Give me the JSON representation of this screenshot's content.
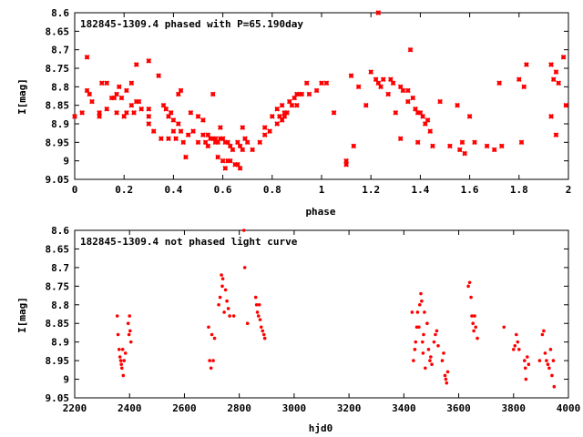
{
  "chart_data": [
    {
      "type": "scatter",
      "title": "182845-1309.4 phased with P=65.190day",
      "xlabel": "phase",
      "ylabel": "I[mag]",
      "xlim": [
        0,
        2
      ],
      "ylim": [
        8.6,
        9.05
      ],
      "y_inverted": true,
      "grid": false,
      "marker": "x-cross",
      "color": "#ff0000",
      "x_ticks": [
        "0",
        "0.2",
        "0.4",
        "0.6",
        "0.8",
        "1",
        "1.2",
        "1.4",
        "1.6",
        "1.8",
        "2"
      ],
      "y_ticks": [
        "8.6",
        "8.65",
        "8.7",
        "8.75",
        "8.8",
        "8.85",
        "8.9",
        "8.95",
        "9",
        "9.05"
      ],
      "points": [
        [
          0.0,
          8.88
        ],
        [
          0.03,
          8.87
        ],
        [
          0.05,
          8.72
        ],
        [
          0.05,
          8.81
        ],
        [
          0.06,
          8.82
        ],
        [
          0.07,
          8.84
        ],
        [
          0.1,
          8.87
        ],
        [
          0.1,
          8.88
        ],
        [
          0.11,
          8.79
        ],
        [
          0.13,
          8.79
        ],
        [
          0.13,
          8.86
        ],
        [
          0.15,
          8.83
        ],
        [
          0.16,
          8.83
        ],
        [
          0.17,
          8.82
        ],
        [
          0.17,
          8.87
        ],
        [
          0.18,
          8.8
        ],
        [
          0.19,
          8.83
        ],
        [
          0.2,
          8.88
        ],
        [
          0.21,
          8.87
        ],
        [
          0.21,
          8.81
        ],
        [
          0.23,
          8.79
        ],
        [
          0.23,
          8.85
        ],
        [
          0.24,
          8.87
        ],
        [
          0.25,
          8.74
        ],
        [
          0.25,
          8.84
        ],
        [
          0.26,
          8.84
        ],
        [
          0.27,
          8.86
        ],
        [
          0.3,
          8.88
        ],
        [
          0.3,
          8.9
        ],
        [
          0.3,
          8.86
        ],
        [
          0.3,
          8.73
        ],
        [
          0.32,
          8.92
        ],
        [
          0.34,
          8.77
        ],
        [
          0.35,
          8.94
        ],
        [
          0.36,
          8.85
        ],
        [
          0.37,
          8.86
        ],
        [
          0.38,
          8.88
        ],
        [
          0.38,
          8.94
        ],
        [
          0.39,
          8.87
        ],
        [
          0.4,
          8.89
        ],
        [
          0.4,
          8.92
        ],
        [
          0.41,
          8.94
        ],
        [
          0.42,
          8.9
        ],
        [
          0.42,
          8.82
        ],
        [
          0.43,
          8.81
        ],
        [
          0.43,
          8.92
        ],
        [
          0.44,
          8.95
        ],
        [
          0.45,
          8.99
        ],
        [
          0.46,
          8.93
        ],
        [
          0.47,
          8.87
        ],
        [
          0.48,
          8.92
        ],
        [
          0.5,
          8.88
        ],
        [
          0.5,
          8.95
        ],
        [
          0.52,
          8.89
        ],
        [
          0.52,
          8.93
        ],
        [
          0.53,
          8.95
        ],
        [
          0.54,
          8.96
        ],
        [
          0.54,
          8.93
        ],
        [
          0.55,
          8.94
        ],
        [
          0.56,
          8.82
        ],
        [
          0.56,
          8.94
        ],
        [
          0.57,
          8.95
        ],
        [
          0.57,
          8.94
        ],
        [
          0.58,
          8.95
        ],
        [
          0.58,
          8.99
        ],
        [
          0.59,
          8.94
        ],
        [
          0.59,
          8.91
        ],
        [
          0.6,
          8.94
        ],
        [
          0.6,
          9.0
        ],
        [
          0.61,
          8.95
        ],
        [
          0.61,
          9.02
        ],
        [
          0.62,
          8.95
        ],
        [
          0.62,
          9.0
        ],
        [
          0.63,
          8.96
        ],
        [
          0.63,
          9.0
        ],
        [
          0.64,
          8.97
        ],
        [
          0.65,
          9.01
        ],
        [
          0.66,
          8.95
        ],
        [
          0.66,
          9.01
        ],
        [
          0.67,
          8.96
        ],
        [
          0.67,
          9.02
        ],
        [
          0.68,
          8.97
        ],
        [
          0.68,
          8.91
        ],
        [
          0.69,
          8.94
        ],
        [
          0.7,
          8.95
        ],
        [
          0.72,
          8.97
        ],
        [
          0.75,
          8.95
        ],
        [
          0.77,
          8.93
        ],
        [
          0.77,
          8.91
        ],
        [
          0.79,
          8.92
        ],
        [
          0.8,
          8.88
        ],
        [
          0.82,
          8.9
        ],
        [
          0.82,
          8.86
        ],
        [
          0.83,
          8.88
        ],
        [
          0.84,
          8.89
        ],
        [
          0.84,
          8.85
        ],
        [
          0.85,
          8.88
        ],
        [
          0.85,
          8.87
        ],
        [
          0.86,
          8.87
        ],
        [
          0.87,
          8.84
        ],
        [
          0.88,
          8.85
        ],
        [
          0.89,
          8.83
        ],
        [
          0.9,
          8.82
        ],
        [
          0.9,
          8.85
        ],
        [
          0.91,
          8.82
        ],
        [
          0.92,
          8.82
        ],
        [
          0.94,
          8.79
        ],
        [
          0.95,
          8.82
        ],
        [
          0.98,
          8.81
        ],
        [
          1.0,
          8.79
        ],
        [
          1.02,
          8.79
        ],
        [
          1.05,
          8.87
        ],
        [
          1.1,
          9.01
        ],
        [
          1.1,
          9.0
        ],
        [
          1.12,
          8.77
        ],
        [
          1.13,
          8.96
        ],
        [
          1.15,
          8.8
        ],
        [
          1.18,
          8.85
        ],
        [
          1.2,
          8.76
        ],
        [
          1.22,
          8.78
        ],
        [
          1.23,
          8.6
        ],
        [
          1.23,
          8.79
        ],
        [
          1.24,
          8.8
        ],
        [
          1.25,
          8.78
        ],
        [
          1.27,
          8.82
        ],
        [
          1.28,
          8.78
        ],
        [
          1.29,
          8.79
        ],
        [
          1.3,
          8.87
        ],
        [
          1.32,
          8.8
        ],
        [
          1.32,
          8.94
        ],
        [
          1.33,
          8.81
        ],
        [
          1.35,
          8.81
        ],
        [
          1.35,
          8.84
        ],
        [
          1.36,
          8.7
        ],
        [
          1.37,
          8.83
        ],
        [
          1.38,
          8.86
        ],
        [
          1.39,
          8.87
        ],
        [
          1.39,
          8.95
        ],
        [
          1.4,
          8.87
        ],
        [
          1.41,
          8.88
        ],
        [
          1.42,
          8.9
        ],
        [
          1.43,
          8.89
        ],
        [
          1.44,
          8.92
        ],
        [
          1.45,
          8.96
        ],
        [
          1.48,
          8.84
        ],
        [
          1.52,
          8.96
        ],
        [
          1.55,
          8.85
        ],
        [
          1.56,
          8.97
        ],
        [
          1.57,
          8.95
        ],
        [
          1.58,
          8.98
        ],
        [
          1.6,
          8.88
        ],
        [
          1.62,
          8.95
        ],
        [
          1.67,
          8.96
        ],
        [
          1.7,
          8.97
        ],
        [
          1.72,
          8.79
        ],
        [
          1.73,
          8.96
        ],
        [
          1.8,
          8.78
        ],
        [
          1.81,
          8.95
        ],
        [
          1.82,
          8.8
        ],
        [
          1.83,
          8.74
        ],
        [
          1.93,
          8.88
        ],
        [
          1.93,
          8.74
        ],
        [
          1.94,
          8.78
        ],
        [
          1.95,
          8.76
        ],
        [
          1.96,
          8.79
        ],
        [
          1.95,
          8.93
        ],
        [
          1.98,
          8.72
        ],
        [
          1.99,
          8.85
        ]
      ]
    },
    {
      "type": "scatter",
      "title": "182845-1309.4 not phased light curve",
      "xlabel": "hjd0",
      "ylabel": "I[mag]",
      "xlim": [
        2200,
        4000
      ],
      "ylim": [
        8.6,
        9.05
      ],
      "y_inverted": true,
      "grid": false,
      "marker": "dot",
      "color": "#ff0000",
      "x_ticks": [
        "2200",
        "2400",
        "2600",
        "2800",
        "3000",
        "3200",
        "3400",
        "3600",
        "3800",
        "4000"
      ],
      "y_ticks": [
        "8.6",
        "8.65",
        "8.7",
        "8.75",
        "8.8",
        "8.85",
        "8.9",
        "8.95",
        "9",
        "9.05"
      ],
      "points": [
        [
          2355,
          8.83
        ],
        [
          2358,
          8.88
        ],
        [
          2362,
          8.92
        ],
        [
          2365,
          8.94
        ],
        [
          2368,
          8.95
        ],
        [
          2370,
          8.96
        ],
        [
          2372,
          8.97
        ],
        [
          2375,
          8.92
        ],
        [
          2377,
          8.99
        ],
        [
          2380,
          8.95
        ],
        [
          2385,
          8.93
        ],
        [
          2395,
          8.85
        ],
        [
          2398,
          8.88
        ],
        [
          2400,
          8.83
        ],
        [
          2402,
          8.87
        ],
        [
          2405,
          8.9
        ],
        [
          2688,
          8.86
        ],
        [
          2692,
          8.95
        ],
        [
          2697,
          8.97
        ],
        [
          2700,
          8.88
        ],
        [
          2705,
          8.95
        ],
        [
          2710,
          8.89
        ],
        [
          2725,
          8.8
        ],
        [
          2730,
          8.78
        ],
        [
          2735,
          8.72
        ],
        [
          2738,
          8.75
        ],
        [
          2740,
          8.73
        ],
        [
          2745,
          8.82
        ],
        [
          2750,
          8.76
        ],
        [
          2755,
          8.79
        ],
        [
          2760,
          8.81
        ],
        [
          2765,
          8.83
        ],
        [
          2780,
          8.83
        ],
        [
          2817,
          8.6
        ],
        [
          2820,
          8.7
        ],
        [
          2830,
          8.85
        ],
        [
          2860,
          8.78
        ],
        [
          2863,
          8.8
        ],
        [
          2866,
          8.82
        ],
        [
          2870,
          8.83
        ],
        [
          2873,
          8.8
        ],
        [
          2876,
          8.84
        ],
        [
          2880,
          8.86
        ],
        [
          2885,
          8.87
        ],
        [
          2890,
          8.88
        ],
        [
          2893,
          8.89
        ],
        [
          3430,
          8.82
        ],
        [
          3435,
          8.95
        ],
        [
          3440,
          8.92
        ],
        [
          3443,
          8.9
        ],
        [
          3447,
          8.86
        ],
        [
          3450,
          8.82
        ],
        [
          3455,
          8.86
        ],
        [
          3458,
          8.8
        ],
        [
          3462,
          8.77
        ],
        [
          3465,
          8.79
        ],
        [
          3468,
          8.9
        ],
        [
          3470,
          8.93
        ],
        [
          3472,
          8.88
        ],
        [
          3475,
          8.82
        ],
        [
          3478,
          8.97
        ],
        [
          3485,
          8.85
        ],
        [
          3490,
          8.92
        ],
        [
          3495,
          8.95
        ],
        [
          3498,
          8.94
        ],
        [
          3502,
          8.96
        ],
        [
          3510,
          8.9
        ],
        [
          3515,
          8.88
        ],
        [
          3520,
          8.87
        ],
        [
          3525,
          8.91
        ],
        [
          3540,
          8.95
        ],
        [
          3545,
          8.93
        ],
        [
          3550,
          8.99
        ],
        [
          3553,
          9.0
        ],
        [
          3556,
          9.01
        ],
        [
          3560,
          8.98
        ],
        [
          3635,
          8.75
        ],
        [
          3640,
          8.74
        ],
        [
          3645,
          8.78
        ],
        [
          3648,
          8.83
        ],
        [
          3652,
          8.85
        ],
        [
          3655,
          8.87
        ],
        [
          3658,
          8.83
        ],
        [
          3662,
          8.86
        ],
        [
          3668,
          8.89
        ],
        [
          3765,
          8.86
        ],
        [
          3800,
          8.92
        ],
        [
          3805,
          8.91
        ],
        [
          3810,
          8.88
        ],
        [
          3815,
          8.9
        ],
        [
          3820,
          8.92
        ],
        [
          3840,
          8.95
        ],
        [
          3843,
          8.97
        ],
        [
          3845,
          9.0
        ],
        [
          3850,
          8.94
        ],
        [
          3855,
          8.96
        ],
        [
          3895,
          8.95
        ],
        [
          3905,
          8.88
        ],
        [
          3910,
          8.87
        ],
        [
          3915,
          8.93
        ],
        [
          3920,
          8.95
        ],
        [
          3925,
          8.96
        ],
        [
          3930,
          8.97
        ],
        [
          3935,
          8.92
        ],
        [
          3940,
          8.99
        ],
        [
          3945,
          8.95
        ],
        [
          3948,
          9.02
        ]
      ]
    }
  ]
}
